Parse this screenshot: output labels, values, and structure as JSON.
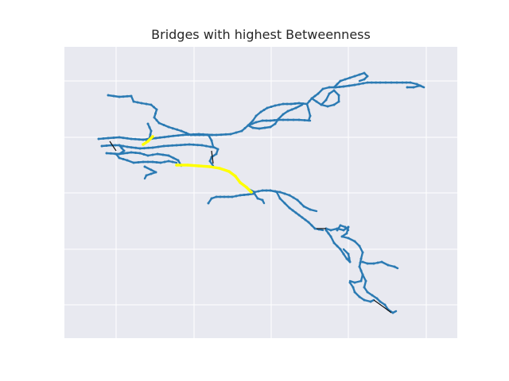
{
  "chart_data": {
    "type": "network",
    "title": "Bridges with highest Betweenness",
    "xlabel": "",
    "ylabel": "",
    "grid": true,
    "axes_background": "#e8e9f0",
    "grid_color": "#ffffff",
    "colors": {
      "network_edge": "#2a7ab3",
      "bridge_edge": "#111111",
      "highest_betweenness_bridge": "#ffff00"
    }
  }
}
